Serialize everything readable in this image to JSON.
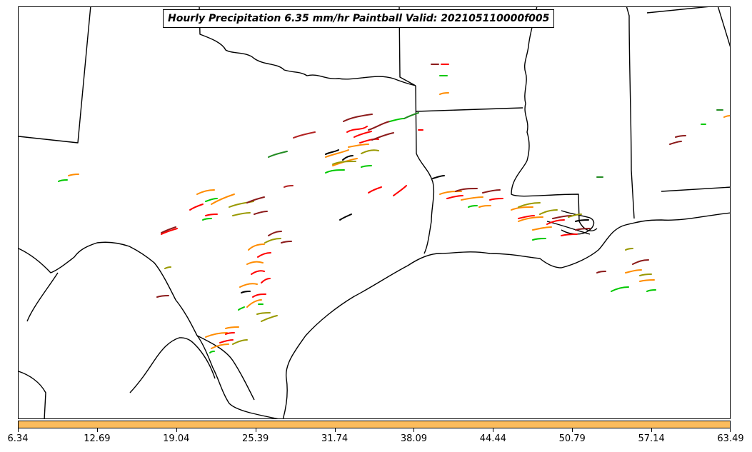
{
  "title": "Hourly Precipitation 6.35 mm/hr Paintball Valid: 202105110000f005",
  "colorbar": {
    "color": "#fcbc5c",
    "ticks": [
      "6.34",
      "12.69",
      "19.04",
      "25.39",
      "31.74",
      "38.09",
      "44.44",
      "50.79",
      "57.14",
      "63.49"
    ]
  },
  "colors": {
    "member_colors": [
      "#ff0000",
      "#ff8c00",
      "#00c800",
      "#8b1a1a",
      "#999900",
      "#000000",
      "#228b22",
      "#b22222"
    ],
    "boundaries": "#000000"
  }
}
